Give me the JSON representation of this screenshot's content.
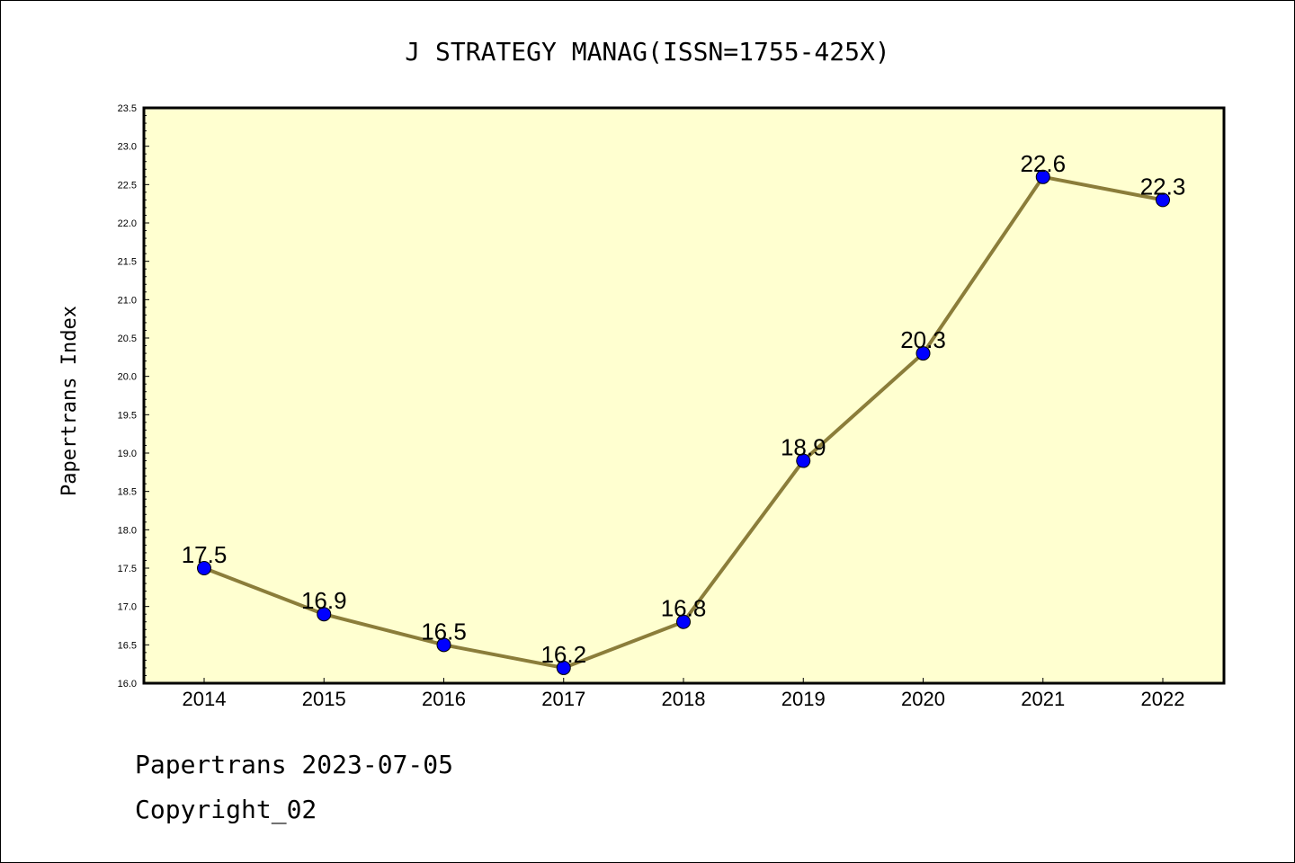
{
  "chart_data": {
    "type": "line",
    "title": "J STRATEGY MANAG(ISSN=1755-425X)",
    "ylabel": "Papertrans Index",
    "xlabel": "",
    "categories": [
      "2014",
      "2015",
      "2016",
      "2017",
      "2018",
      "2019",
      "2020",
      "2021",
      "2022"
    ],
    "series": [
      {
        "values": [
          17.5,
          16.9,
          16.5,
          16.2,
          16.8,
          18.9,
          20.3,
          22.6,
          22.3
        ]
      }
    ],
    "data_labels": [
      "17.5",
      "16.9",
      "16.5",
      "16.2",
      "16.8",
      "18.9",
      "20.3",
      "22.6",
      "22.3"
    ],
    "ylim": [
      16.0,
      23.5
    ],
    "yticks": [
      "16.0",
      "16.5",
      "17.0",
      "17.5",
      "18.0",
      "18.5",
      "19.0",
      "19.5",
      "20.0",
      "20.5",
      "21.0",
      "21.5",
      "22.0",
      "22.5",
      "23.0",
      "23.5"
    ],
    "grid": false,
    "colors": {
      "plot_background": "#ffffd0",
      "line": "#8b7d3a",
      "marker": "#0000ff"
    }
  },
  "footer": {
    "line1": "Papertrans 2023-07-05",
    "line2": "Copyright_02"
  }
}
